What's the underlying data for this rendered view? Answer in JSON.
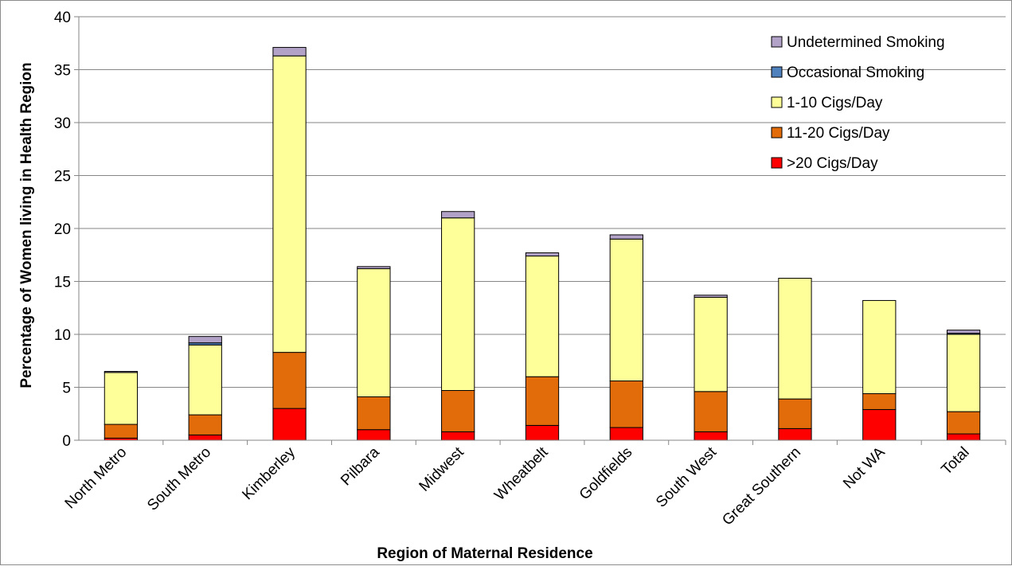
{
  "chart_data": {
    "type": "bar",
    "stacked": true,
    "title": "",
    "xlabel": "Region of Maternal Residence",
    "ylabel": "Percentage of Women living in Health Region",
    "ylim": [
      0,
      40
    ],
    "yticks": [
      0,
      5,
      10,
      15,
      20,
      25,
      30,
      35,
      40
    ],
    "grid": true,
    "legend_position": "top-right",
    "categories": [
      "North Metro",
      "South Metro",
      "Kimberley",
      "Pilbara",
      "Midwest",
      "Wheatbelt",
      "Goldfields",
      "South West",
      "Great Southern",
      "Not WA",
      "Total"
    ],
    "series": [
      {
        "name": ">20 Cigs/Day",
        "color": "#ff0000",
        "values": [
          0.2,
          0.5,
          3.0,
          1.0,
          0.8,
          1.4,
          1.2,
          0.8,
          1.1,
          2.9,
          0.6
        ]
      },
      {
        "name": "11-20 Cigs/Day",
        "color": "#e36c0a",
        "values": [
          1.3,
          1.9,
          5.3,
          3.1,
          3.9,
          4.6,
          4.4,
          3.8,
          2.8,
          1.5,
          2.1
        ]
      },
      {
        "name": "1-10 Cigs/Day",
        "color": "#ffff99",
        "values": [
          4.9,
          6.6,
          28.0,
          12.1,
          16.3,
          11.4,
          13.4,
          8.9,
          11.4,
          8.8,
          7.3
        ]
      },
      {
        "name": "Occasional Smoking",
        "color": "#4f81bd",
        "values": [
          0.0,
          0.2,
          0.0,
          0.0,
          0.0,
          0.0,
          0.0,
          0.0,
          0.0,
          0.0,
          0.1
        ]
      },
      {
        "name": "Undetermined Smoking",
        "color": "#b3a2c7",
        "values": [
          0.1,
          0.6,
          0.8,
          0.2,
          0.6,
          0.3,
          0.4,
          0.2,
          0.0,
          0.0,
          0.3
        ]
      }
    ]
  }
}
